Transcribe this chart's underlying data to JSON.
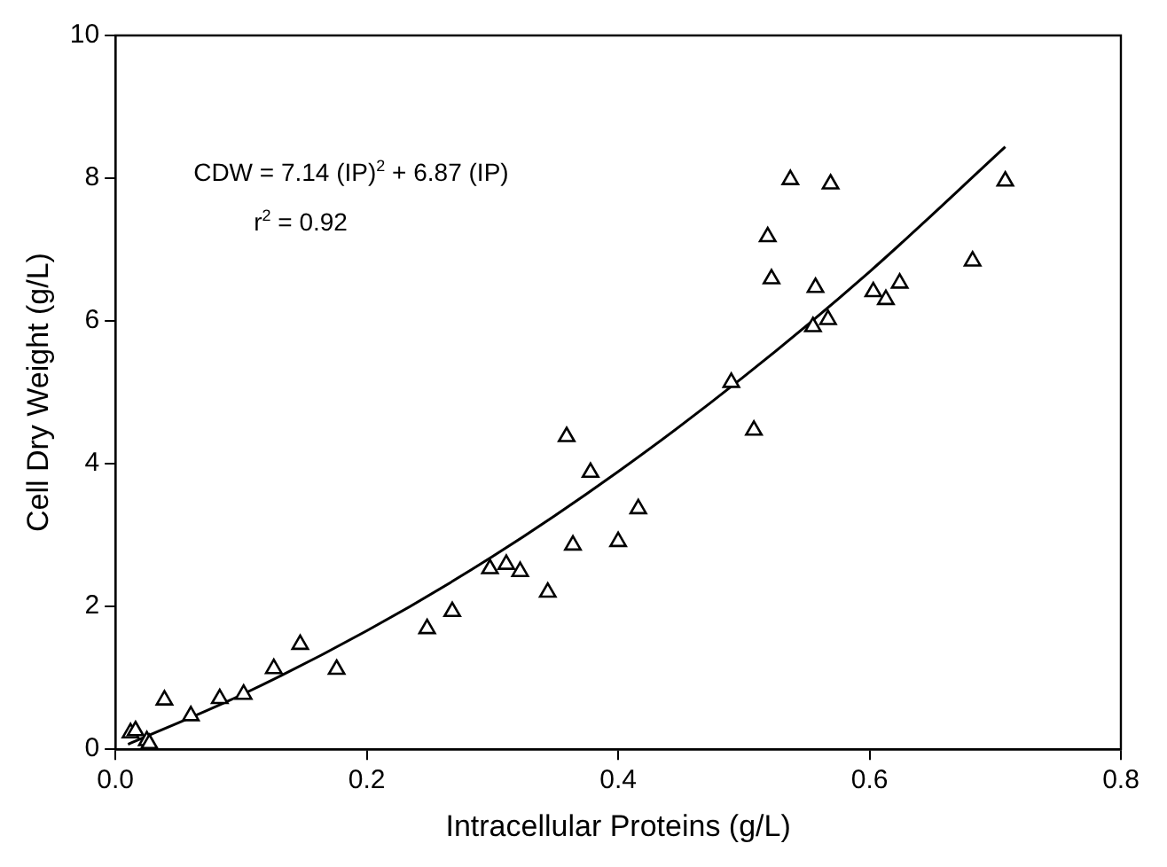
{
  "chart_data": {
    "type": "scatter",
    "xlabel": "Intracellular Proteins (g/L)",
    "ylabel": "Cell Dry Weight (g/L)",
    "xlim": [
      0,
      0.8
    ],
    "xticks": [
      {
        "value": 0,
        "label": "0.0"
      },
      0.2,
      0.4,
      0.6,
      0.8
    ],
    "ylim": [
      0,
      10
    ],
    "yticks": [
      0,
      2,
      4,
      6,
      8,
      10
    ],
    "grid": false,
    "legend": false,
    "marker": "triangle",
    "annotations": [
      "CDW = 7.14 (IP)$^{2}$ + 6.87 (IP)",
      "r$^{2}$ = 0.92"
    ],
    "series": [
      {
        "type": "scatter",
        "color": "#000000",
        "x": [
          0.012,
          0.016,
          0.025,
          0.027,
          0.039,
          0.06,
          0.083,
          0.102,
          0.126,
          0.147,
          0.176,
          0.248,
          0.268,
          0.298,
          0.311,
          0.322,
          0.344,
          0.359,
          0.364,
          0.378,
          0.4,
          0.416,
          0.49,
          0.508,
          0.519,
          0.522,
          0.537,
          0.555,
          0.557,
          0.567,
          0.569,
          0.603,
          0.613,
          0.624,
          0.682,
          0.708
        ],
        "values": [
          0.23,
          0.26,
          0.12,
          0.08,
          0.69,
          0.47,
          0.71,
          0.77,
          1.13,
          1.47,
          1.12,
          1.69,
          1.93,
          2.53,
          2.59,
          2.49,
          2.2,
          4.38,
          2.86,
          3.88,
          2.91,
          3.37,
          5.14,
          4.47,
          7.18,
          6.59,
          7.98,
          5.92,
          6.47,
          6.02,
          7.92,
          6.41,
          6.3,
          6.53,
          6.84,
          7.96
        ]
      },
      {
        "type": "line",
        "color": "#000000",
        "marker": "none",
        "x": [
          0.01,
          0.1,
          0.2,
          0.3,
          0.4,
          0.5,
          0.6,
          0.708
        ],
        "values": [
          0.07,
          0.76,
          1.66,
          2.7,
          3.89,
          5.22,
          6.69,
          8.44
        ]
      }
    ]
  }
}
